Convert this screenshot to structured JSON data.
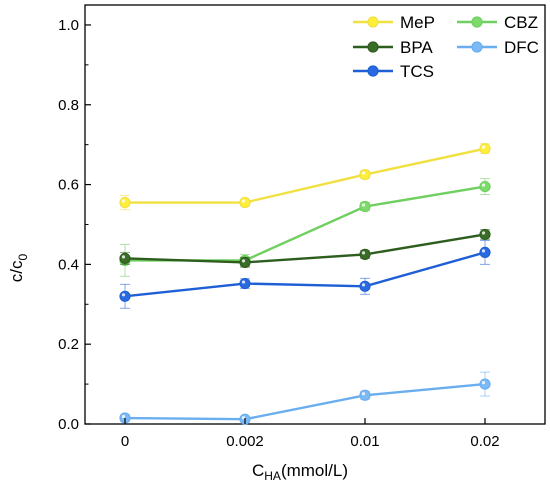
{
  "chart_data": {
    "type": "line",
    "categories": [
      "0",
      "0.002",
      "0.01",
      "0.02"
    ],
    "xlabel": {
      "main": "C",
      "sub": "HA",
      "unit": "(mmol/L)"
    },
    "ylabel": {
      "main": "c/c",
      "sub": "0"
    },
    "ylim": [
      0.0,
      1.05
    ],
    "yticks": [
      0.0,
      0.2,
      0.4,
      0.6,
      0.8,
      1.0
    ],
    "ytick_labels": [
      "0.0",
      "0.2",
      "0.4",
      "0.6",
      "0.8",
      "1.0"
    ],
    "grid": false,
    "legend_position": "top-right",
    "series": [
      {
        "name": "MeP",
        "color": "#f0e040",
        "marker_color": "#ffef3a",
        "values": [
          0.555,
          0.555,
          0.625,
          0.69
        ],
        "errors": [
          0.018,
          0.008,
          0.01,
          0.012
        ]
      },
      {
        "name": "CBZ",
        "color": "#6fcf5f",
        "marker_color": "#7ddb6c",
        "values": [
          0.41,
          0.41,
          0.545,
          0.595
        ],
        "errors": [
          0.04,
          0.015,
          0.01,
          0.02
        ]
      },
      {
        "name": "BPA",
        "color": "#2e5e1e",
        "marker_color": "#3a6e28",
        "values": [
          0.415,
          0.405,
          0.425,
          0.475
        ],
        "errors": [
          0.015,
          0.012,
          0.01,
          0.012
        ]
      },
      {
        "name": "DFC",
        "color": "#6aaef0",
        "marker_color": "#7cbaf5",
        "values": [
          0.015,
          0.012,
          0.072,
          0.1
        ],
        "errors": [
          0.008,
          0.006,
          0.01,
          0.03
        ]
      },
      {
        "name": "TCS",
        "color": "#1f5fd6",
        "marker_color": "#2a6ae0",
        "values": [
          0.32,
          0.352,
          0.345,
          0.43
        ],
        "errors": [
          0.03,
          0.012,
          0.02,
          0.03
        ]
      }
    ]
  }
}
